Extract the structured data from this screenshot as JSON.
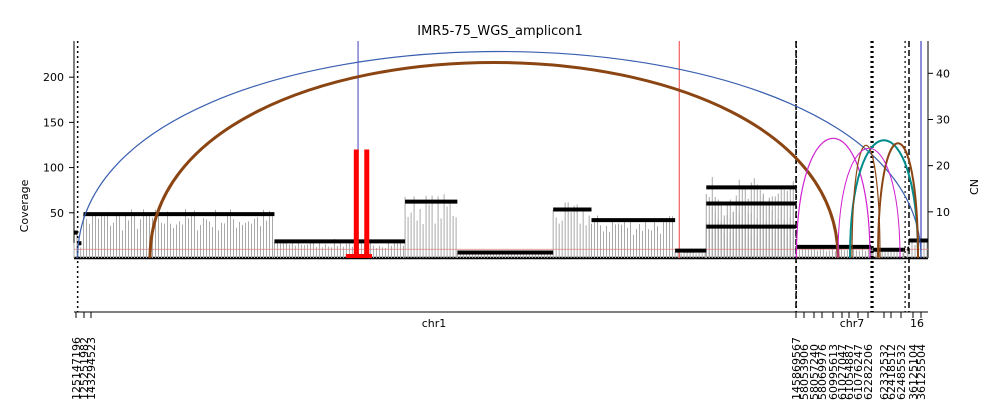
{
  "chart_data": {
    "type": "line",
    "title": "IMR5-75_WGS_amplicon1",
    "ylabel_left": "Coverage",
    "ylabel_right": "CN",
    "ylim_left": [
      0,
      240
    ],
    "ylim_right": [
      0,
      47
    ],
    "yticks_left": [
      50,
      100,
      150,
      200
    ],
    "yticks_right": [
      10,
      20,
      30,
      40
    ],
    "chromosomes": [
      {
        "name": "chr1",
        "start": 125147196,
        "end": 145869567
      },
      {
        "name": "chr7",
        "start": 58053906,
        "end": 62485532
      },
      {
        "name": "16",
        "start": 36125104,
        "end": 36125504
      }
    ],
    "x_tick_labels": [
      "125147196",
      "125251982",
      "143294523",
      "145869567",
      "58053906",
      "58057240",
      "58069976",
      "60995613",
      "61027047",
      "61054887",
      "61076247",
      "62282206",
      "62332532",
      "62418512",
      "62485532",
      "36125104",
      "36125504"
    ],
    "cn_segments": [
      {
        "chrom": "chr1",
        "start": 125147196,
        "end": 125251982,
        "cn": 5.5
      },
      {
        "chrom": "chr1",
        "start": 125251982,
        "end": 125360000,
        "cn": 3.2
      },
      {
        "chrom": "chr1",
        "start": 125420000,
        "end": 130900000,
        "cn": 9.5
      },
      {
        "chrom": "chr1",
        "start": 130900000,
        "end": 134650000,
        "cn": 3.6
      },
      {
        "chrom": "chr1",
        "start": 134650000,
        "end": 136150000,
        "cn": 12.2
      },
      {
        "chrom": "chr1",
        "start": 136150000,
        "end": 138900000,
        "cn": 1.2
      },
      {
        "chrom": "chr1",
        "start": 138900000,
        "end": 140000000,
        "cn": 10.5
      },
      {
        "chrom": "chr1",
        "start": 140000000,
        "end": 142400000,
        "cn": 8.2
      },
      {
        "chrom": "chr1",
        "start": 142400000,
        "end": 143294523,
        "cn": 1.6
      },
      {
        "chrom": "chr1",
        "start": 143294523,
        "end": 145869567,
        "cn": 11.8
      },
      {
        "chrom": "chr1",
        "start": 143294523,
        "end": 145869567,
        "cn": 15.3
      },
      {
        "chrom": "chr1",
        "start": 143294523,
        "end": 145869567,
        "cn": 6.8
      },
      {
        "chrom": "chr7",
        "start": 58053906,
        "end": 58057240,
        "cn": 2.0
      },
      {
        "chrom": "chr7",
        "start": 58057240,
        "end": 58069976,
        "cn": 3.5
      },
      {
        "chrom": "chr7",
        "start": 58069976,
        "end": 60995613,
        "cn": 2.4
      },
      {
        "chrom": "chr7",
        "start": 60995613,
        "end": 61027047,
        "cn": 2.2
      },
      {
        "chrom": "chr7",
        "start": 61027047,
        "end": 61054887,
        "cn": 2.0
      },
      {
        "chrom": "chr7",
        "start": 61076247,
        "end": 62282206,
        "cn": 1.8
      },
      {
        "chrom": "chr7",
        "start": 62282206,
        "end": 62332532,
        "cn": 1.8
      },
      {
        "chrom": "chr7",
        "start": 62418512,
        "end": 62485532,
        "cn": 2.0
      },
      {
        "chrom": "16",
        "start": 36125104,
        "end": 36125504,
        "cn": 3.8
      }
    ]
  }
}
